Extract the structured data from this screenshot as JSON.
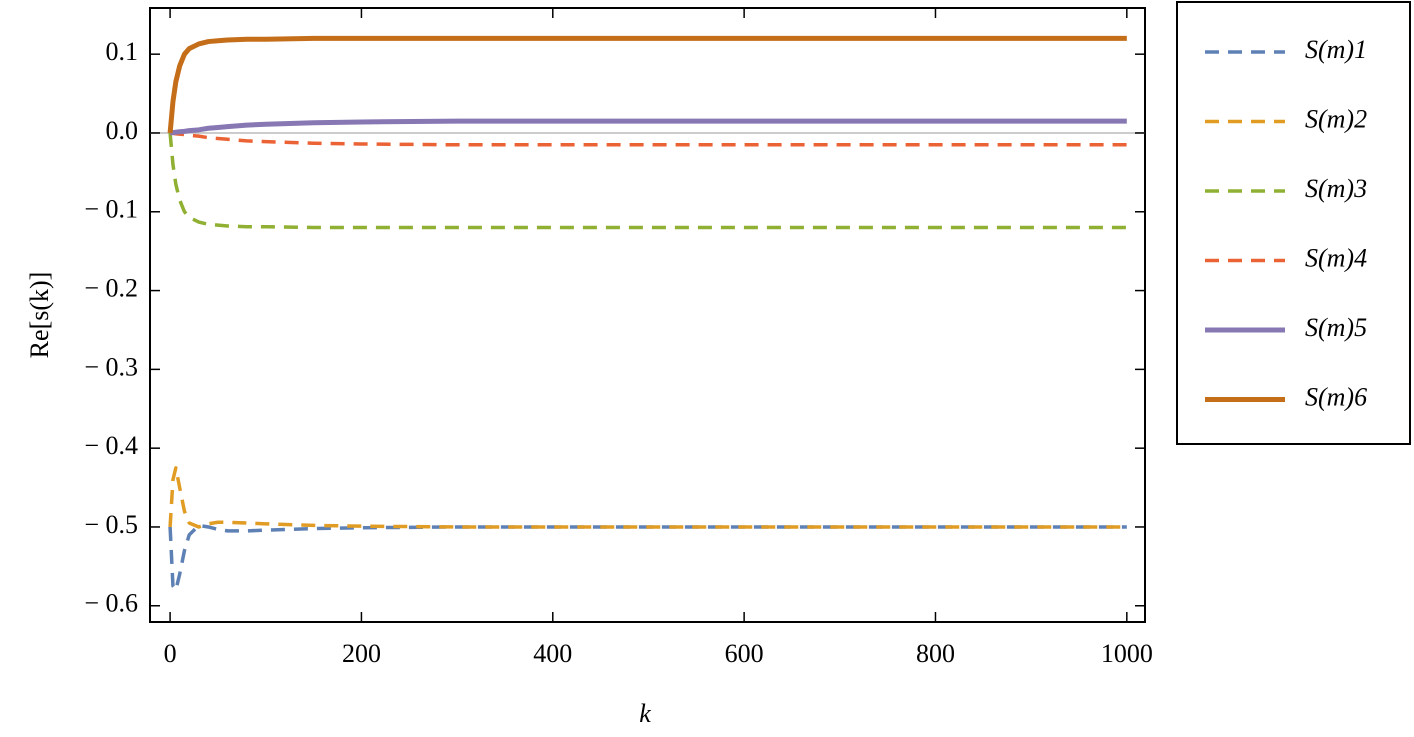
{
  "chart_data": {
    "type": "line",
    "xlabel": "k",
    "ylabel": "Re[s(k)]",
    "x": [
      0,
      3,
      6,
      10,
      15,
      20,
      30,
      40,
      50,
      60,
      80,
      100,
      150,
      200,
      300,
      400,
      500,
      600,
      700,
      800,
      900,
      1000
    ],
    "series": [
      {
        "name": "S(m)1",
        "color": "#5e81b5",
        "dashed": true,
        "values": [
          -0.5,
          -0.575,
          -0.58,
          -0.56,
          -0.53,
          -0.51,
          -0.498,
          -0.5,
          -0.503,
          -0.505,
          -0.505,
          -0.504,
          -0.502,
          -0.501,
          -0.5,
          -0.5,
          -0.5,
          -0.5,
          -0.5,
          -0.5,
          -0.5,
          -0.5
        ]
      },
      {
        "name": "S(m)2",
        "color": "#e19c24",
        "dashed": true,
        "values": [
          -0.5,
          -0.44,
          -0.425,
          -0.45,
          -0.48,
          -0.495,
          -0.5,
          -0.496,
          -0.494,
          -0.494,
          -0.495,
          -0.496,
          -0.498,
          -0.499,
          -0.5,
          -0.5,
          -0.5,
          -0.5,
          -0.5,
          -0.5,
          -0.5,
          -0.5
        ]
      },
      {
        "name": "S(m)3",
        "color": "#8fb032",
        "dashed": true,
        "values": [
          0,
          -0.04,
          -0.065,
          -0.085,
          -0.1,
          -0.107,
          -0.113,
          -0.116,
          -0.117,
          -0.118,
          -0.119,
          -0.119,
          -0.12,
          -0.12,
          -0.12,
          -0.12,
          -0.12,
          -0.12,
          -0.12,
          -0.12,
          -0.12,
          -0.12
        ]
      },
      {
        "name": "S(m)4",
        "color": "#eb6235",
        "dashed": true,
        "values": [
          0,
          -0.0005,
          -0.001,
          -0.0015,
          -0.002,
          -0.003,
          -0.004,
          -0.006,
          -0.007,
          -0.008,
          -0.01,
          -0.011,
          -0.013,
          -0.014,
          -0.015,
          -0.015,
          -0.015,
          -0.015,
          -0.015,
          -0.015,
          -0.015,
          -0.015
        ]
      },
      {
        "name": "S(m)5",
        "color": "#8778b3",
        "dashed": false,
        "values": [
          0,
          0.0005,
          0.001,
          0.0015,
          0.002,
          0.003,
          0.004,
          0.006,
          0.007,
          0.008,
          0.01,
          0.011,
          0.013,
          0.014,
          0.015,
          0.015,
          0.015,
          0.015,
          0.015,
          0.015,
          0.015,
          0.015
        ]
      },
      {
        "name": "S(m)6",
        "color": "#c56e1a",
        "dashed": false,
        "values": [
          0,
          0.04,
          0.065,
          0.085,
          0.1,
          0.107,
          0.113,
          0.116,
          0.117,
          0.118,
          0.119,
          0.119,
          0.12,
          0.12,
          0.12,
          0.12,
          0.12,
          0.12,
          0.12,
          0.12,
          0.12,
          0.12
        ]
      }
    ],
    "xlim": [
      -21,
      1019
    ],
    "ylim": [
      -0.6206,
      0.1586
    ],
    "xticks": [
      0,
      200,
      400,
      600,
      800,
      1000
    ],
    "yticks": [
      {
        "value": -0.6,
        "label": "− 0.6"
      },
      {
        "value": -0.5,
        "label": "− 0.5"
      },
      {
        "value": -0.4,
        "label": "− 0.4"
      },
      {
        "value": -0.3,
        "label": "− 0.3"
      },
      {
        "value": -0.2,
        "label": "− 0.2"
      },
      {
        "value": -0.1,
        "label": "− 0.1"
      },
      {
        "value": 0,
        "label": "0.0"
      },
      0.1
    ],
    "legend": "right"
  }
}
